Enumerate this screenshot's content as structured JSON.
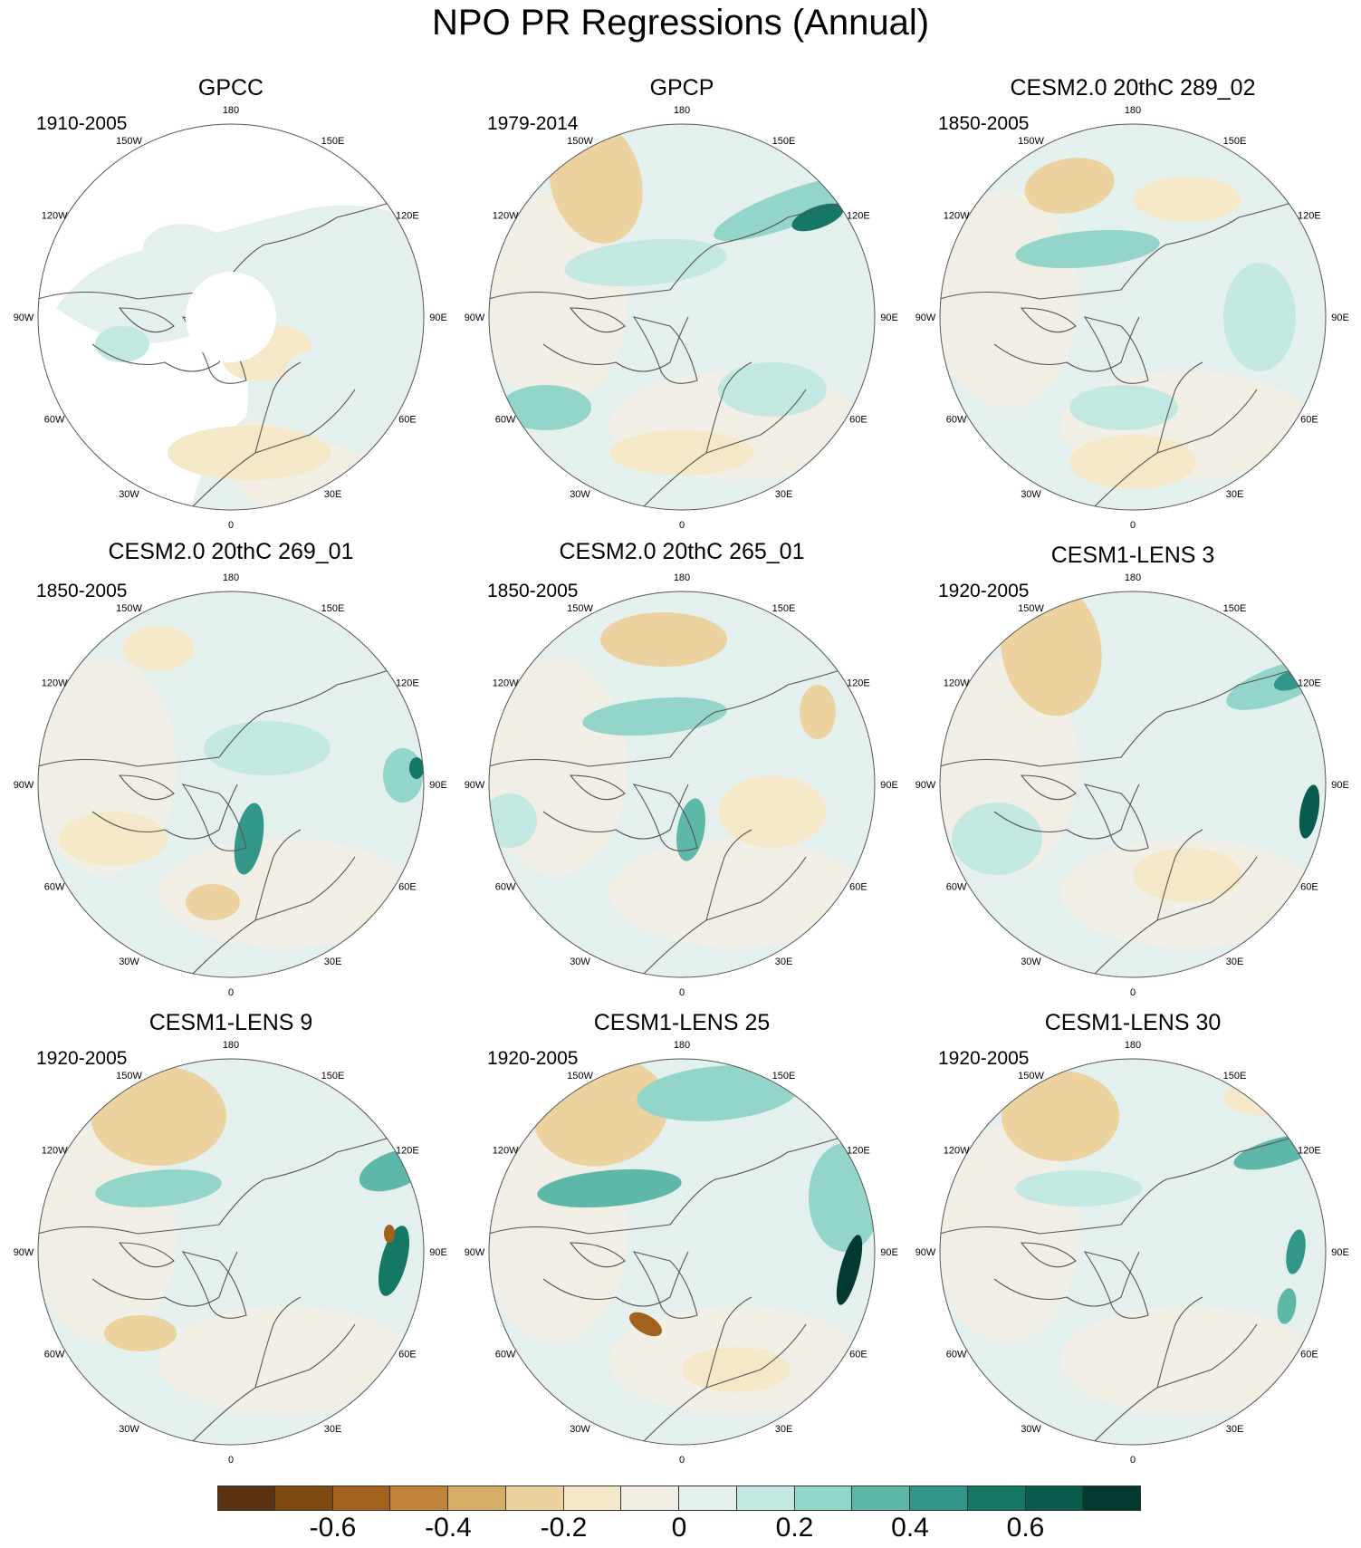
{
  "title": "NPO PR Regressions (Annual)",
  "lon_labels": [
    "180",
    "150E",
    "120E",
    "90E",
    "60E",
    "30E",
    "0",
    "30W",
    "60W",
    "90W",
    "120W",
    "150W"
  ],
  "panels": [
    {
      "title": "GPCC",
      "years": "1910-2005"
    },
    {
      "title": "GPCP",
      "years": "1979-2014"
    },
    {
      "title": "CESM2.0 20thC 289_02",
      "years": "1850-2005"
    },
    {
      "title": "CESM2.0 20thC 269_01",
      "years": "1850-2005"
    },
    {
      "title": "CESM2.0 20thC 265_01",
      "years": "1850-2005"
    },
    {
      "title": "CESM1-LENS 3",
      "years": "1920-2005"
    },
    {
      "title": "CESM1-LENS 9",
      "years": "1920-2005"
    },
    {
      "title": "CESM1-LENS 25",
      "years": "1920-2005"
    },
    {
      "title": "CESM1-LENS 30",
      "years": "1920-2005"
    }
  ],
  "colorbar": {
    "colors": [
      "#5c3310",
      "#7f4a12",
      "#a2611c",
      "#c1843a",
      "#d6ac66",
      "#ebd29f",
      "#f5e8c8",
      "#f2eee3",
      "#e4f0ee",
      "#c3e8e1",
      "#93d5c8",
      "#5db8a9",
      "#32968a",
      "#157766",
      "#075c4d",
      "#023a2f"
    ],
    "tick_labels": [
      "-0.6",
      "-0.4",
      "-0.2",
      "0",
      "0.2",
      "0.4",
      "0.6"
    ]
  }
}
